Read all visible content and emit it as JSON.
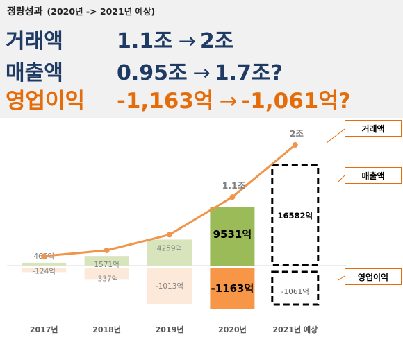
{
  "header": {
    "subtitle": "정량성과",
    "subtitle_paren": "(2020년 -> 2021년 예상)",
    "metrics": [
      {
        "label": "거래액",
        "from": "1.1조",
        "arrow": "→",
        "to": "2조"
      },
      {
        "label": "매출액",
        "from": "0.95조",
        "arrow": "→",
        "to": "1.7조?"
      },
      {
        "label": "영업이익",
        "from": "-1,163억",
        "arrow": "→",
        "to": "-1,061억?"
      }
    ]
  },
  "colors": {
    "navy": "#1f3b64",
    "orange": "#e46c0a",
    "line": "#f0944a",
    "bar_pos_light": "#d8e4bc",
    "bar_pos_strong": "#9bbb59",
    "bar_neg_light": "#fde9d9",
    "bar_neg_strong": "#f79646",
    "header_bg": "#f1f1f1"
  },
  "chart_data": {
    "type": "bar",
    "categories": [
      "2017년",
      "2018년",
      "2019년",
      "2020년",
      "2021년 예상"
    ],
    "series": [
      {
        "name": "매출액",
        "values": [
          466,
          1571,
          4259,
          9531,
          16582
        ],
        "labels": [
          "466억",
          "1571억",
          "4259억",
          "9531억",
          "16582억"
        ]
      },
      {
        "name": "영업이익",
        "values": [
          -124,
          -337,
          -1013,
          -1163,
          -1061
        ],
        "labels": [
          "-124억",
          "-337억",
          "-1013억",
          "-1163억",
          "-1061억"
        ]
      },
      {
        "name": "거래액",
        "kind": "line",
        "values": [
          0.08,
          0.18,
          0.45,
          1.1,
          2.0
        ],
        "labels": [
          "",
          "",
          "",
          "1.1조",
          "2조"
        ]
      }
    ],
    "callouts": [
      "거래액",
      "매출액",
      "영업이익"
    ],
    "highlight_index": 3,
    "forecast_index": 4,
    "grid": false,
    "legend": "callouts-right"
  }
}
